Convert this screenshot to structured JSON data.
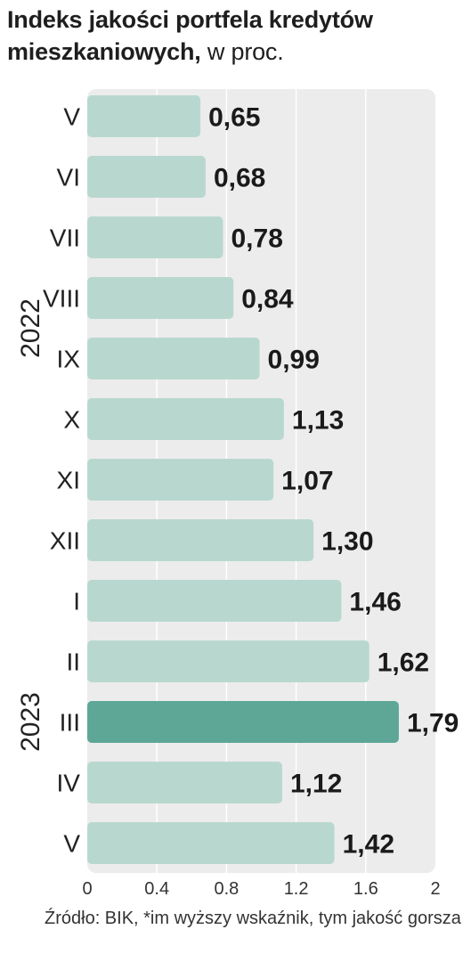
{
  "title": {
    "bold": "Indeks jakości portfela kredytów mieszkaniowych,",
    "light": "w proc."
  },
  "source": "Źródło: BIK, *im wyższy wskaźnik, tym jakość gorsza",
  "colors": {
    "bar": "#b8d8cf",
    "highlight": "#5ea797",
    "plot_background": "#ececec"
  },
  "chart_data": {
    "type": "bar",
    "orientation": "horizontal",
    "categories": [
      "V",
      "VI",
      "VII",
      "VIII",
      "IX",
      "X",
      "XI",
      "XII",
      "I",
      "II",
      "III",
      "IV",
      "V"
    ],
    "value_labels": [
      "0,65",
      "0,68",
      "0,78",
      "0,84",
      "0,99",
      "1,13",
      "1,07",
      "1,30",
      "1,46",
      "1,62",
      "1,79",
      "1,12",
      "1,42"
    ],
    "values": [
      0.65,
      0.68,
      0.78,
      0.84,
      0.99,
      1.13,
      1.07,
      1.3,
      1.46,
      1.62,
      1.79,
      1.12,
      1.42
    ],
    "highlight_index": 10,
    "groups": [
      {
        "label": "2022",
        "start": 0,
        "end": 7
      },
      {
        "label": "2023",
        "start": 8,
        "end": 12
      }
    ],
    "xlim": [
      0,
      2
    ],
    "xticks": [
      0,
      0.4,
      0.8,
      1.2,
      1.6,
      2
    ],
    "xtick_labels": [
      "0",
      "0.4",
      "0.8",
      "1.2",
      "1.6",
      "2"
    ],
    "grid": true
  }
}
